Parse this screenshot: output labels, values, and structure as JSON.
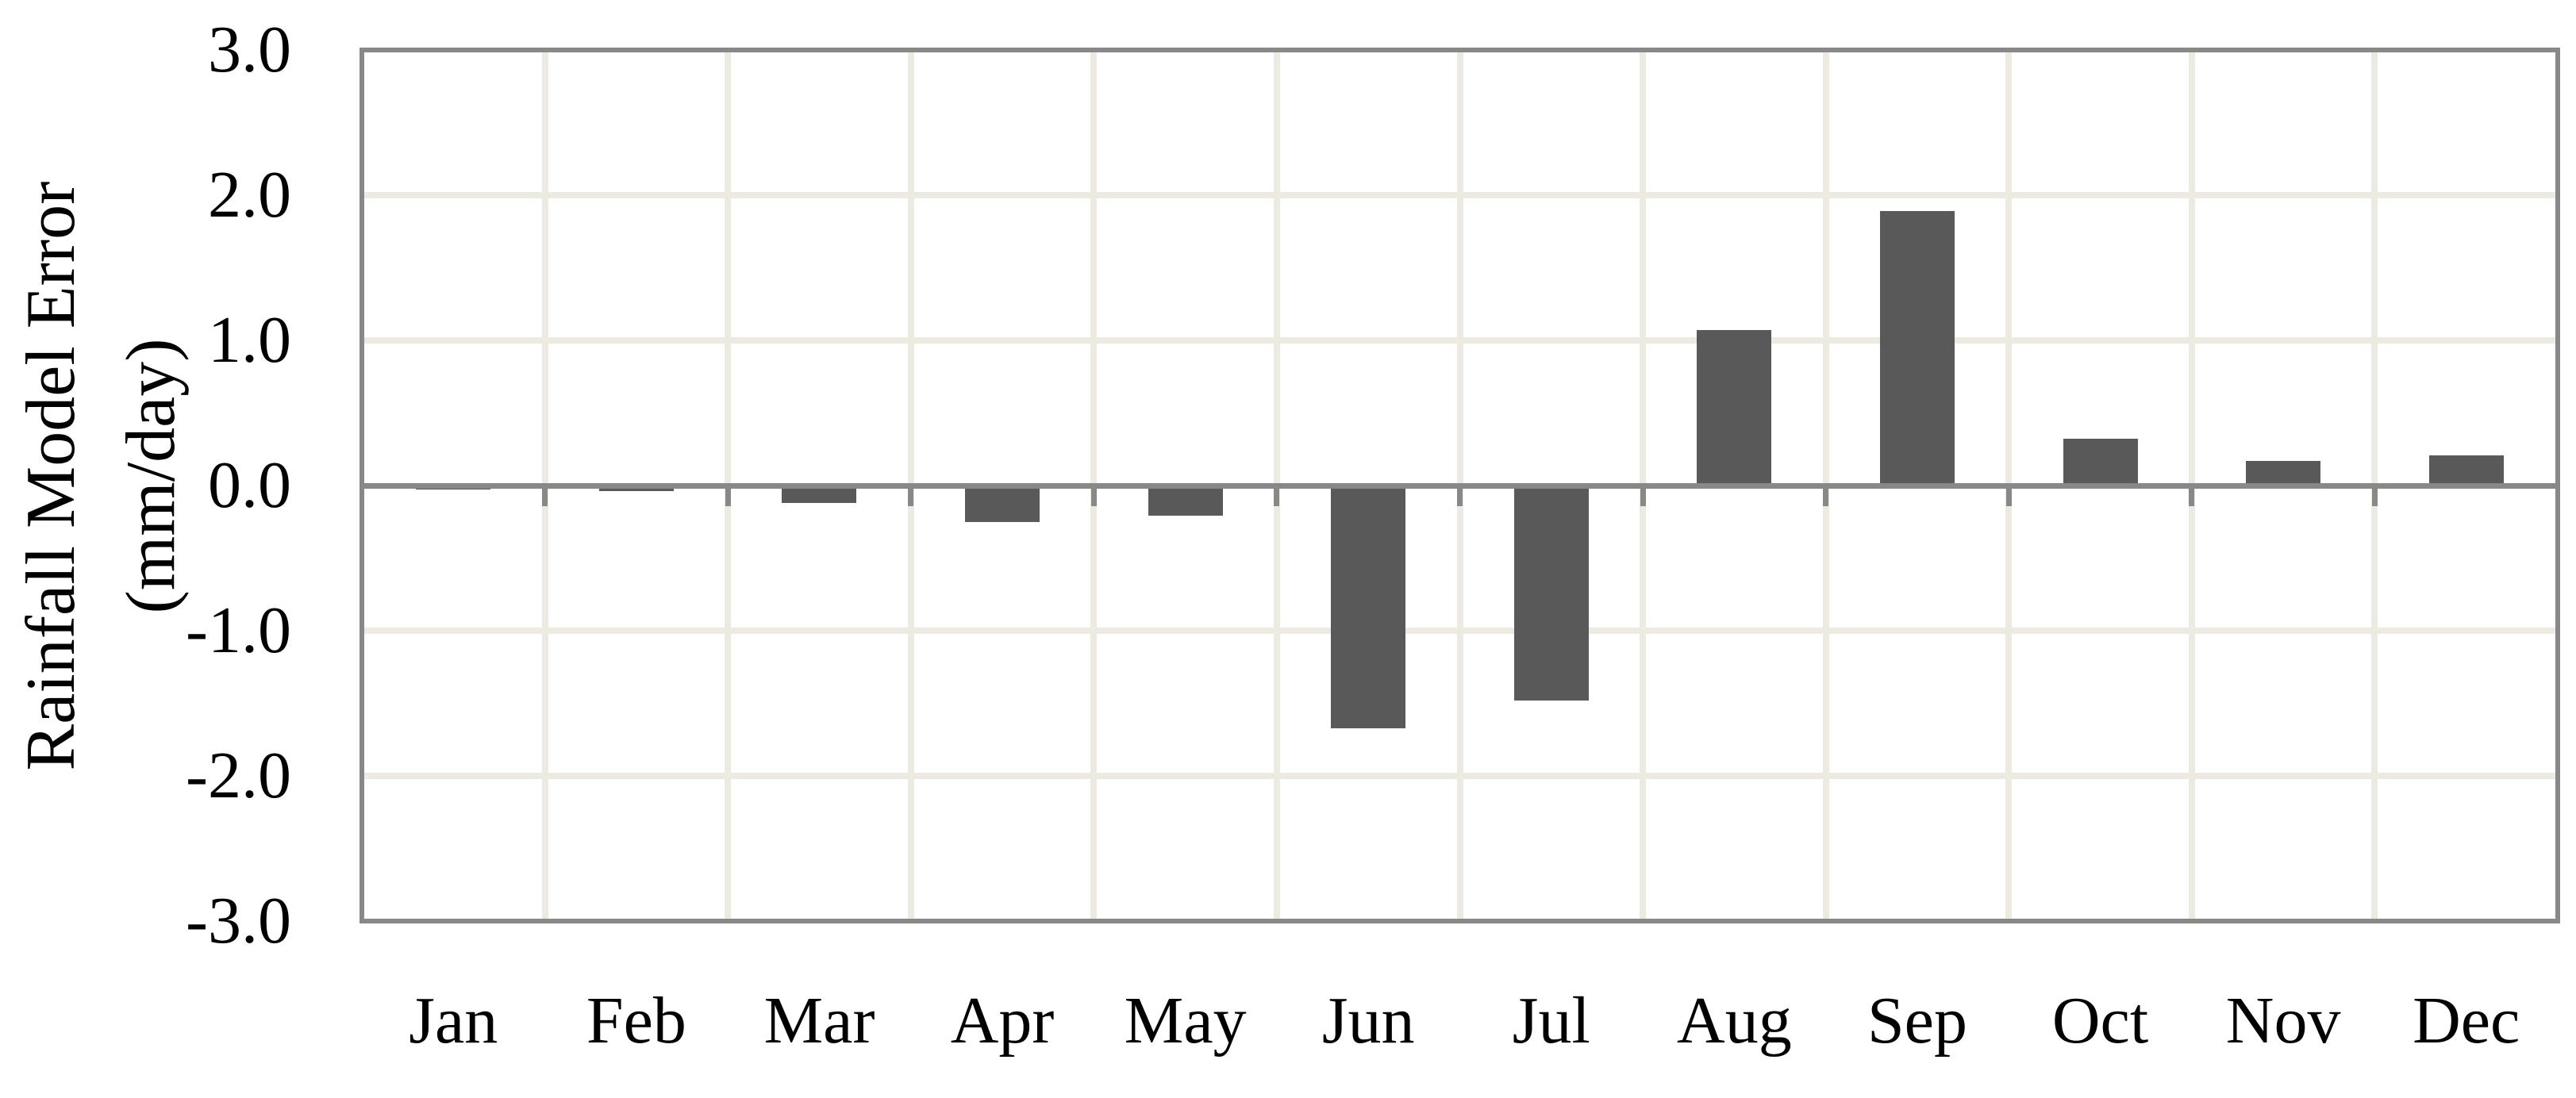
{
  "chart_data": {
    "type": "bar",
    "title": "",
    "categories": [
      "Jan",
      "Feb",
      "Mar",
      "Apr",
      "May",
      "Jun",
      "Jul",
      "Aug",
      "Sep",
      "Oct",
      "Nov",
      "Dec"
    ],
    "values": [
      -0.03,
      -0.04,
      -0.12,
      -0.25,
      -0.21,
      -1.67,
      -1.48,
      1.07,
      1.89,
      0.32,
      0.17,
      0.21
    ],
    "xlabel": "",
    "ylabel": "Rainfall Model Error (mm/day)",
    "ylabel_lines": [
      "Rainfall Model Error",
      "(mm/day)"
    ],
    "ylim": [
      -3.0,
      3.0
    ],
    "ytick_interval": 1.0,
    "ytick_labels": [
      "3.0",
      "2.0",
      "1.0",
      "0.0",
      "-1.0",
      "-2.0",
      "-3.0"
    ],
    "grid": true,
    "legend": "none",
    "colors": {
      "bar": "#595959",
      "axis_line": "#888888",
      "gridline": "#EDEAE1",
      "text": "#000000",
      "background": "#FFFFFF"
    }
  }
}
